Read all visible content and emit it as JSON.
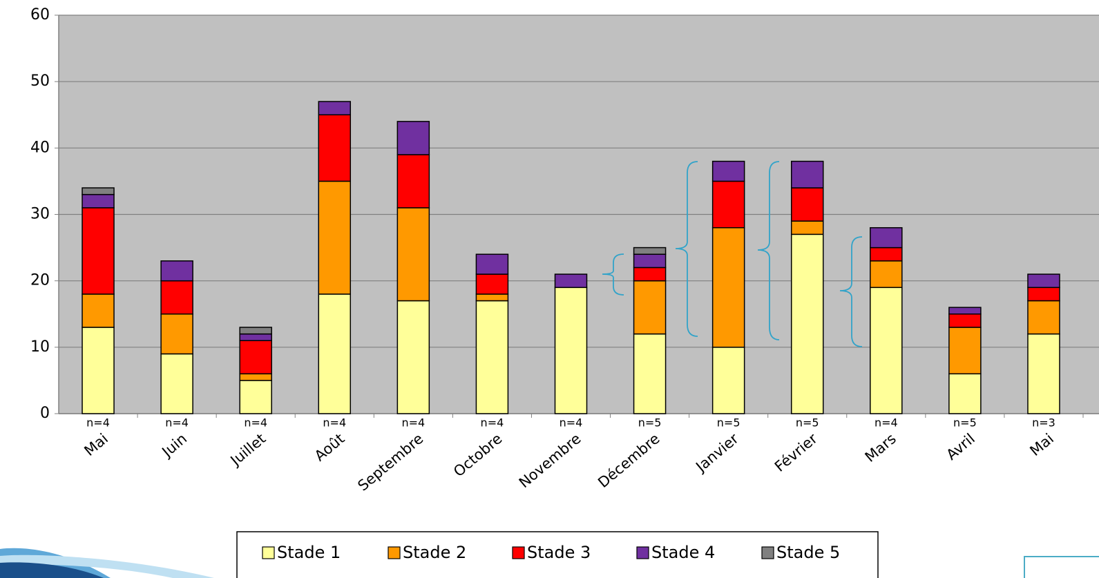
{
  "chart_data": {
    "type": "stacked_bar",
    "categories": [
      "Mai",
      "Juin",
      "Juillet",
      "Août",
      "Septembre",
      "Octobre",
      "Novembre",
      "Décembre",
      "Janvier",
      "Février",
      "Mars",
      "Avril",
      "Mai"
    ],
    "annotations": [
      "n=4",
      "n=4",
      "n=4",
      "n=4",
      "n=4",
      "n=4",
      "n=4",
      "n=5",
      "n=5",
      "n=5",
      "n=4",
      "n=5",
      "n=3"
    ],
    "series": [
      {
        "name": "Stade 1",
        "color": "#ffff99",
        "values": [
          13,
          9,
          5,
          18,
          17,
          17,
          19,
          12,
          10,
          27,
          19,
          6,
          12
        ]
      },
      {
        "name": "Stade 2",
        "color": "#ff9900",
        "values": [
          5,
          6,
          1,
          17,
          14,
          1,
          0,
          8,
          18,
          2,
          4,
          7,
          5
        ]
      },
      {
        "name": "Stade 3",
        "color": "#ff0000",
        "values": [
          13,
          5,
          5,
          10,
          8,
          3,
          0,
          2,
          7,
          5,
          2,
          2,
          2
        ]
      },
      {
        "name": "Stade 4",
        "color": "#7030a0",
        "values": [
          2,
          3,
          1,
          2,
          5,
          3,
          2,
          2,
          3,
          4,
          3,
          1,
          2
        ]
      },
      {
        "name": "Stade 5",
        "color": "#808080",
        "values": [
          1,
          0,
          1,
          0,
          0,
          0,
          0,
          1,
          0,
          0,
          0,
          0,
          0
        ]
      }
    ],
    "ylim": [
      0,
      60
    ],
    "yticks": [
      0,
      10,
      20,
      30,
      40,
      50,
      60
    ],
    "grid": true
  }
}
